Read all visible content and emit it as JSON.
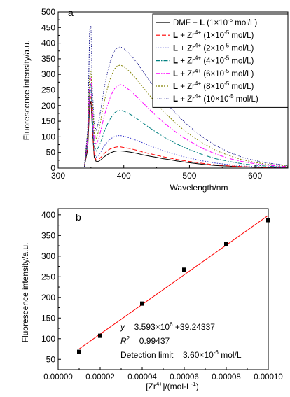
{
  "chart_data": [
    {
      "panel_label": "a",
      "type": "line",
      "xlabel": "Wavelength/nm",
      "ylabel": "Fluorescence intensity/a.u.",
      "xlim": [
        300,
        650
      ],
      "ylim": [
        0,
        500
      ],
      "xticks": [
        "300",
        "400",
        "500",
        "600"
      ],
      "yticks": [
        "0",
        "50",
        "100",
        "150",
        "200",
        "250",
        "300",
        "350",
        "400",
        "450",
        "500"
      ],
      "legend_position": "top-right",
      "x": [
        340,
        345,
        348,
        350,
        352,
        355,
        358,
        362,
        366,
        370,
        375,
        380,
        385,
        390,
        395,
        400,
        410,
        420,
        430,
        440,
        450,
        460,
        470,
        480,
        490,
        500,
        520,
        540,
        560,
        580,
        600,
        620,
        640,
        650
      ],
      "series": [
        {
          "legend_parts": [
            "DMF + ",
            "L",
            " (1",
            "×",
            "10",
            "-5",
            " mol/L)"
          ],
          "color": "#000000",
          "dash": "none",
          "values": [
            5,
            60,
            200,
            215,
            130,
            35,
            20,
            22,
            28,
            36,
            43,
            49,
            53,
            55,
            55,
            54,
            51,
            47,
            42,
            38,
            34,
            30,
            27,
            23,
            20,
            17,
            12,
            8,
            6,
            4,
            3,
            2,
            1,
            1
          ]
        },
        {
          "legend_parts": [
            "L",
            " + Zr",
            "4+",
            " (1",
            "×",
            "10",
            "-5",
            " mol/L)"
          ],
          "color": "#ff0000",
          "dash": "6,3",
          "values": [
            5,
            70,
            215,
            230,
            140,
            40,
            25,
            28,
            36,
            46,
            56,
            62,
            66,
            68,
            68,
            66,
            62,
            57,
            51,
            46,
            41,
            36,
            32,
            28,
            24,
            21,
            15,
            10,
            7,
            5,
            3,
            2,
            1,
            1
          ]
        },
        {
          "legend_parts": [
            "L",
            " + Zr",
            "4+",
            " (2",
            "×",
            "10",
            "-5",
            " mol/L)"
          ],
          "color": "#3333cc",
          "dash": "1.5,2",
          "values": [
            5,
            80,
            235,
            250,
            155,
            50,
            35,
            42,
            55,
            70,
            84,
            94,
            100,
            104,
            104,
            102,
            96,
            88,
            80,
            71,
            63,
            56,
            49,
            43,
            37,
            32,
            23,
            16,
            11,
            7,
            5,
            3,
            2,
            1
          ]
        },
        {
          "legend_parts": [
            "L",
            " + Zr",
            "4+",
            " (4",
            "×",
            "10",
            "-5",
            " mol/L)"
          ],
          "color": "#008080",
          "dash": "6,2,1.5,2",
          "values": [
            5,
            90,
            255,
            270,
            175,
            70,
            55,
            68,
            90,
            115,
            140,
            160,
            175,
            183,
            185,
            182,
            172,
            158,
            143,
            128,
            114,
            101,
            89,
            78,
            68,
            59,
            43,
            30,
            21,
            14,
            9,
            6,
            4,
            3
          ]
        },
        {
          "legend_parts": [
            "L",
            " + Zr",
            "4+",
            " (6",
            "×",
            "10",
            "-5",
            " mol/L)"
          ],
          "color": "#ff00ff",
          "dash": "6,2,1.5,2,1.5,2",
          "values": [
            5,
            100,
            275,
            290,
            200,
            90,
            75,
            95,
            130,
            165,
            200,
            230,
            252,
            263,
            267,
            263,
            248,
            228,
            207,
            186,
            166,
            147,
            130,
            114,
            99,
            86,
            63,
            45,
            31,
            21,
            14,
            9,
            6,
            5
          ]
        },
        {
          "legend_parts": [
            "L",
            " + Zr",
            "4+",
            " (8",
            "×",
            "10",
            "-5",
            " mol/L)"
          ],
          "color": "#808000",
          "dash": "2,2",
          "values": [
            5,
            110,
            295,
            310,
            220,
            110,
            95,
            120,
            165,
            210,
            255,
            290,
            315,
            327,
            330,
            325,
            307,
            283,
            257,
            231,
            206,
            183,
            162,
            142,
            124,
            108,
            80,
            57,
            40,
            27,
            18,
            12,
            8,
            6
          ]
        },
        {
          "legend_parts": [
            "L",
            " + Zr",
            "4+",
            " (10",
            "×",
            "10",
            "-5",
            " mol/L)"
          ],
          "color": "#000080",
          "dash": "1,1.5",
          "values": [
            5,
            120,
            440,
            455,
            260,
            140,
            120,
            150,
            200,
            255,
            305,
            345,
            372,
            385,
            388,
            383,
            364,
            337,
            307,
            277,
            248,
            221,
            196,
            173,
            152,
            133,
            99,
            72,
            51,
            35,
            24,
            16,
            11,
            8
          ]
        }
      ]
    },
    {
      "panel_label": "b",
      "type": "scatter",
      "xlabel_parts": [
        "[Zr",
        "4+",
        "]/(mol",
        "·",
        "L",
        "-1",
        ")"
      ],
      "ylabel": "Fluorescence intensity/a.u.",
      "xlim": [
        0,
        0.0001
      ],
      "ylim": [
        25,
        415
      ],
      "xticks": [
        "0.00000",
        "0.00002",
        "0.00004",
        "0.00006",
        "0.00008",
        "0.00010"
      ],
      "yticks": [
        "50",
        "100",
        "150",
        "200",
        "250",
        "300",
        "350",
        "400"
      ],
      "points": [
        {
          "x": 1e-05,
          "y": 68
        },
        {
          "x": 2e-05,
          "y": 107
        },
        {
          "x": 4e-05,
          "y": 185
        },
        {
          "x": 6e-05,
          "y": 267
        },
        {
          "x": 8e-05,
          "y": 329
        },
        {
          "x": 0.0001,
          "y": 387
        }
      ],
      "fit_line": {
        "slope": 3593000,
        "intercept": 39.24337,
        "x_start": 1e-05,
        "x_end": 0.0001,
        "color": "#ff0000"
      },
      "annotations": {
        "equation_parts": [
          "y",
          " = 3.593",
          "×",
          "10",
          "6",
          " +39.24337"
        ],
        "r2_parts": [
          "R",
          "2",
          " = 0.99437"
        ],
        "detection_parts": [
          "Detection limit = 3.60",
          "×",
          "10",
          "-6",
          " mol/L"
        ]
      }
    }
  ]
}
